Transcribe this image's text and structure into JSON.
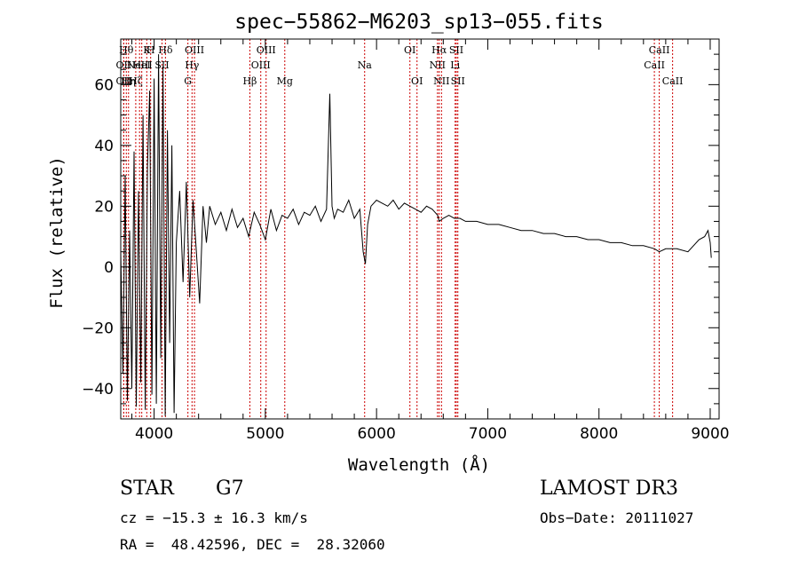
{
  "chart_data": {
    "type": "line",
    "title": "spec−55862−M6203_sp13−055.fits",
    "xlabel": "Wavelength (Å)",
    "ylabel": "Flux (relative)",
    "xlim": [
      3700,
      9080
    ],
    "ylim": [
      -50,
      75
    ],
    "x_ticks": [
      4000,
      5000,
      6000,
      7000,
      8000,
      9000
    ],
    "x_tick_labels": [
      "4000",
      "5000",
      "6000",
      "7000",
      "8000",
      "9000"
    ],
    "y_ticks": [
      -40,
      -20,
      0,
      20,
      40,
      60
    ],
    "y_tick_labels": [
      "−40",
      "−20",
      "0",
      "20",
      "40",
      "60"
    ],
    "grid": false,
    "line_color": "#000000",
    "marker_color": "#cc0000",
    "series": [
      {
        "name": "flux",
        "x": [
          3700,
          3720,
          3740,
          3760,
          3780,
          3800,
          3820,
          3840,
          3860,
          3880,
          3900,
          3920,
          3940,
          3960,
          3980,
          4000,
          4020,
          4040,
          4060,
          4080,
          4100,
          4120,
          4140,
          4160,
          4180,
          4200,
          4230,
          4260,
          4290,
          4320,
          4350,
          4380,
          4410,
          4440,
          4470,
          4500,
          4550,
          4600,
          4650,
          4700,
          4750,
          4800,
          4850,
          4900,
          4950,
          5000,
          5050,
          5100,
          5150,
          5200,
          5250,
          5300,
          5350,
          5400,
          5450,
          5500,
          5550,
          5580,
          5600,
          5620,
          5650,
          5700,
          5750,
          5800,
          5850,
          5880,
          5900,
          5920,
          5950,
          6000,
          6050,
          6100,
          6150,
          6200,
          6250,
          6300,
          6350,
          6400,
          6450,
          6500,
          6550,
          6563,
          6600,
          6650,
          6700,
          6750,
          6800,
          6900,
          7000,
          7100,
          7200,
          7300,
          7400,
          7500,
          7600,
          7700,
          7800,
          7900,
          8000,
          8100,
          8200,
          8300,
          8400,
          8500,
          8542,
          8600,
          8662,
          8700,
          8800,
          8900,
          8950,
          8980,
          9000,
          9010
        ],
        "y": [
          5,
          -35,
          30,
          -44,
          12,
          -40,
          38,
          -46,
          25,
          -38,
          50,
          -47,
          33,
          58,
          -42,
          62,
          -45,
          70,
          -30,
          66,
          -49,
          45,
          -25,
          40,
          -48,
          8,
          25,
          -5,
          28,
          -10,
          22,
          5,
          -12,
          20,
          8,
          20,
          14,
          18,
          12,
          19,
          13,
          16,
          10,
          18,
          14,
          9,
          19,
          12,
          17,
          16,
          19,
          14,
          18,
          17,
          20,
          15,
          19,
          57,
          20,
          16,
          19,
          18,
          22,
          16,
          19,
          5,
          1,
          14,
          20,
          22,
          21,
          20,
          22,
          19,
          21,
          20,
          19,
          18,
          20,
          19,
          17,
          15,
          16,
          17,
          16,
          16,
          15,
          15,
          14,
          14,
          13,
          12,
          12,
          11,
          11,
          10,
          10,
          9,
          9,
          8,
          8,
          7,
          7,
          6,
          5,
          6,
          6,
          6,
          5,
          9,
          10,
          12,
          8,
          3
        ]
      }
    ],
    "line_markers": [
      {
        "wavelength": 3750,
        "label": "Hθ",
        "row": 0
      },
      {
        "wavelength": 3727,
        "label": "OII",
        "row": 1
      },
      {
        "wavelength": 3727,
        "label": "OII",
        "row": 2
      },
      {
        "wavelength": 3770,
        "label": "Hη",
        "row": 2
      },
      {
        "wavelength": 3835,
        "label": "Hζ",
        "row": 2
      },
      {
        "wavelength": 3869,
        "label": "NeIII",
        "row": 1
      },
      {
        "wavelength": 3889,
        "label": "HeI",
        "row": 1
      },
      {
        "wavelength": 3934,
        "label": "K",
        "row": 0
      },
      {
        "wavelength": 3969,
        "label": "H",
        "row": 0
      },
      {
        "wavelength": 4071,
        "label": "SII",
        "row": 1
      },
      {
        "wavelength": 4102,
        "label": "Hδ",
        "row": 0
      },
      {
        "wavelength": 4304,
        "label": "G",
        "row": 2
      },
      {
        "wavelength": 4341,
        "label": "Hγ",
        "row": 1
      },
      {
        "wavelength": 4363,
        "label": "OIII",
        "row": 0
      },
      {
        "wavelength": 4861,
        "label": "Hβ",
        "row": 2
      },
      {
        "wavelength": 4959,
        "label": "OIII",
        "row": 1
      },
      {
        "wavelength": 5007,
        "label": "OIII",
        "row": 0
      },
      {
        "wavelength": 5175,
        "label": "Mg",
        "row": 2
      },
      {
        "wavelength": 5893,
        "label": "Na",
        "row": 1
      },
      {
        "wavelength": 6300,
        "label": "OI",
        "row": 0
      },
      {
        "wavelength": 6364,
        "label": "OI",
        "row": 2
      },
      {
        "wavelength": 6548,
        "label": "NII",
        "row": 1
      },
      {
        "wavelength": 6563,
        "label": "Hα",
        "row": 0
      },
      {
        "wavelength": 6584,
        "label": "NII",
        "row": 2
      },
      {
        "wavelength": 6707,
        "label": "Li",
        "row": 1
      },
      {
        "wavelength": 6717,
        "label": "SII",
        "row": 0
      },
      {
        "wavelength": 6731,
        "label": "SII",
        "row": 2
      },
      {
        "wavelength": 8498,
        "label": "CaII",
        "row": 1
      },
      {
        "wavelength": 8542,
        "label": "CaII",
        "row": 0
      },
      {
        "wavelength": 8662,
        "label": "CaII",
        "row": 2
      }
    ]
  },
  "info": {
    "class": "STAR",
    "subclass": "G7",
    "survey": "LAMOST DR3",
    "redshift_line": "cz = −15.3 ± 16.3 km/s",
    "obs_date_line": "Obs−Date: 20111027",
    "coords_line": "RA =  48.42596, DEC =  28.32060"
  }
}
